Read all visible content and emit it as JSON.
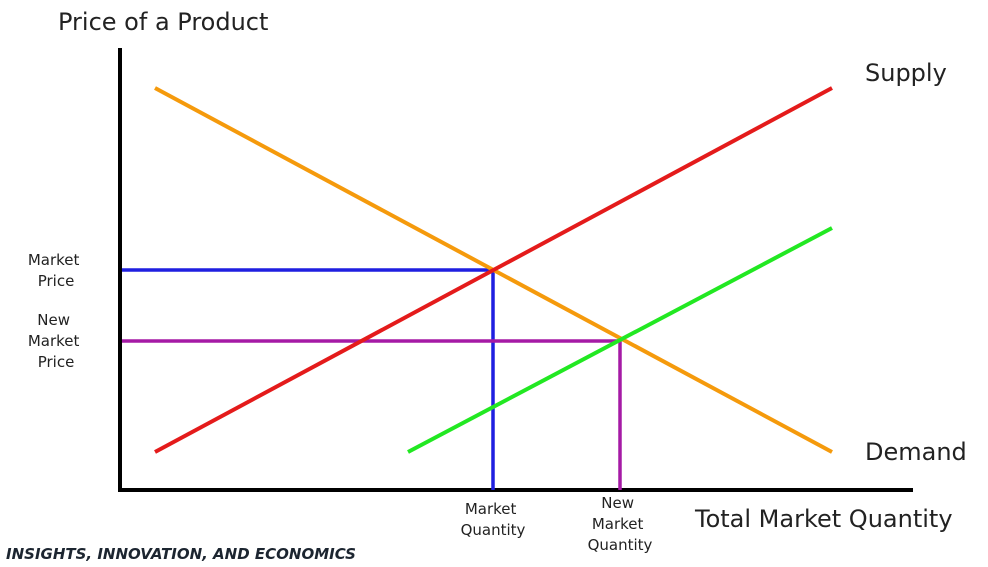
{
  "diagram": {
    "y_axis_label": "Price of a Product",
    "x_axis_label": "Total Market Quantity",
    "supply_label": "Supply",
    "demand_label": "Demand",
    "market_price_label": [
      "Market",
      "Price"
    ],
    "new_market_price_label": [
      "New",
      "Market",
      "Price"
    ],
    "market_quantity_label": [
      "Market",
      "Quantity"
    ],
    "new_market_quantity_label": [
      "New",
      "Market",
      "Quantity"
    ],
    "footer": "INSIGHTS, INNOVATION, AND ECONOMICS"
  }
}
